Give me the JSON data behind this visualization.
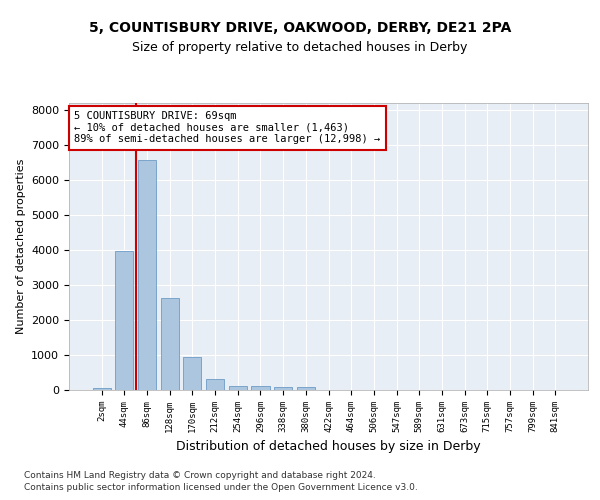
{
  "title1": "5, COUNTISBURY DRIVE, OAKWOOD, DERBY, DE21 2PA",
  "title2": "Size of property relative to detached houses in Derby",
  "xlabel": "Distribution of detached houses by size in Derby",
  "ylabel": "Number of detached properties",
  "categories": [
    "2sqm",
    "44sqm",
    "86sqm",
    "128sqm",
    "170sqm",
    "212sqm",
    "254sqm",
    "296sqm",
    "338sqm",
    "380sqm",
    "422sqm",
    "464sqm",
    "506sqm",
    "547sqm",
    "589sqm",
    "631sqm",
    "673sqm",
    "715sqm",
    "757sqm",
    "799sqm",
    "841sqm"
  ],
  "bar_values": [
    70,
    3970,
    6550,
    2620,
    950,
    300,
    120,
    115,
    90,
    75,
    0,
    0,
    0,
    0,
    0,
    0,
    0,
    0,
    0,
    0,
    0
  ],
  "bar_color": "#adc6e0",
  "bar_edge_color": "#5a8fc0",
  "bg_color": "#e8eef5",
  "grid_color": "#ffffff",
  "vline_color": "#cc0000",
  "annotation_text": "5 COUNTISBURY DRIVE: 69sqm\n← 10% of detached houses are smaller (1,463)\n89% of semi-detached houses are larger (12,998) →",
  "annotation_box_color": "#ffffff",
  "annotation_box_edge": "#cc0000",
  "footer1": "Contains HM Land Registry data © Crown copyright and database right 2024.",
  "footer2": "Contains public sector information licensed under the Open Government Licence v3.0.",
  "ylim": [
    0,
    8200
  ],
  "yticks": [
    0,
    1000,
    2000,
    3000,
    4000,
    5000,
    6000,
    7000,
    8000
  ],
  "vline_pos": 1.5
}
